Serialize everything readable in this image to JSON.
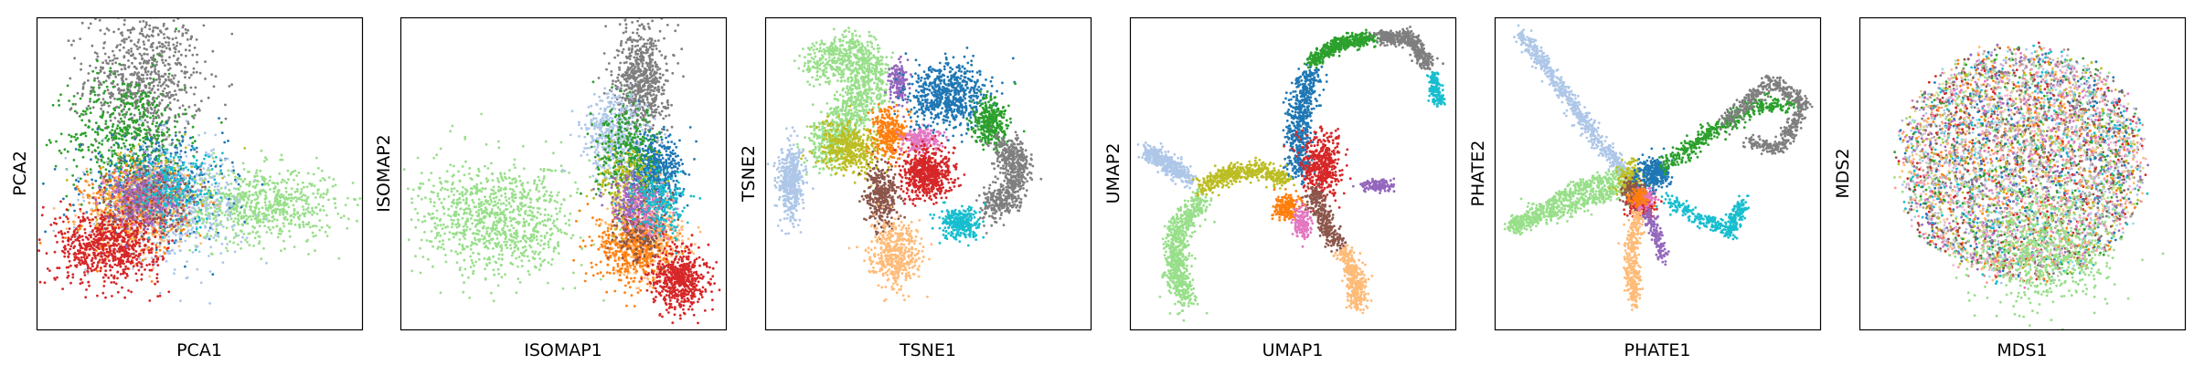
{
  "figure": {
    "panel_count": 6,
    "marker": "small dots",
    "palette": [
      "#1f77b4",
      "#aec7e8",
      "#ff7f0e",
      "#ffbb78",
      "#2ca02c",
      "#98df8a",
      "#d62728",
      "#ff9896",
      "#9467bd",
      "#c5b0d5",
      "#8c564b",
      "#c49c94",
      "#e377c2",
      "#f7b6d2",
      "#7f7f7f",
      "#c7c7c7",
      "#bcbd22",
      "#dbdb8d",
      "#17becf",
      "#9edae5"
    ]
  },
  "chart_data": [
    {
      "type": "scatter",
      "title": "",
      "xlabel": "PCA1",
      "ylabel": "PCA2",
      "axis_ticks": false,
      "grid": false,
      "legend": "none",
      "clusters": [
        {
          "color": "#7f7f7f",
          "cx": 0.33,
          "cy": 0.8,
          "sx": 0.09,
          "sy": 0.11,
          "n": 750
        },
        {
          "color": "#2ca02c",
          "cx": 0.28,
          "cy": 0.62,
          "sx": 0.09,
          "sy": 0.1,
          "n": 550
        },
        {
          "color": "#98df8a",
          "cx": 0.68,
          "cy": 0.4,
          "sx": 0.12,
          "sy": 0.06,
          "n": 750
        },
        {
          "color": "#bcbd22",
          "cx": 0.35,
          "cy": 0.45,
          "sx": 0.08,
          "sy": 0.06,
          "n": 350
        },
        {
          "color": "#1f77b4",
          "cx": 0.36,
          "cy": 0.45,
          "sx": 0.11,
          "sy": 0.08,
          "n": 500
        },
        {
          "color": "#aec7e8",
          "cx": 0.42,
          "cy": 0.4,
          "sx": 0.11,
          "sy": 0.09,
          "n": 550
        },
        {
          "color": "#ff7f0e",
          "cx": 0.3,
          "cy": 0.38,
          "sx": 0.08,
          "sy": 0.07,
          "n": 350
        },
        {
          "color": "#ffbb78",
          "cx": 0.3,
          "cy": 0.37,
          "sx": 0.08,
          "sy": 0.07,
          "n": 350
        },
        {
          "color": "#d62728",
          "cx": 0.22,
          "cy": 0.27,
          "sx": 0.08,
          "sy": 0.06,
          "n": 750
        },
        {
          "color": "#e377c2",
          "cx": 0.35,
          "cy": 0.43,
          "sx": 0.06,
          "sy": 0.05,
          "n": 200
        },
        {
          "color": "#8c564b",
          "cx": 0.34,
          "cy": 0.42,
          "sx": 0.06,
          "sy": 0.05,
          "n": 200
        },
        {
          "color": "#9467bd",
          "cx": 0.32,
          "cy": 0.42,
          "sx": 0.06,
          "sy": 0.05,
          "n": 200
        },
        {
          "color": "#17becf",
          "cx": 0.42,
          "cy": 0.46,
          "sx": 0.07,
          "sy": 0.06,
          "n": 200
        }
      ]
    },
    {
      "type": "scatter",
      "title": "",
      "xlabel": "ISOMAP1",
      "ylabel": "ISOMAP2",
      "axis_ticks": false,
      "grid": false,
      "legend": "none",
      "clusters": [
        {
          "color": "#98df8a",
          "cx": 0.3,
          "cy": 0.35,
          "sx": 0.12,
          "sy": 0.09,
          "n": 950
        },
        {
          "color": "#7f7f7f",
          "cx": 0.74,
          "cy": 0.8,
          "sx": 0.04,
          "sy": 0.09,
          "n": 700
        },
        {
          "color": "#aec7e8",
          "cx": 0.66,
          "cy": 0.62,
          "sx": 0.05,
          "sy": 0.07,
          "n": 450
        },
        {
          "color": "#1f77b4",
          "cx": 0.78,
          "cy": 0.5,
          "sx": 0.04,
          "sy": 0.06,
          "n": 550
        },
        {
          "color": "#2ca02c",
          "cx": 0.7,
          "cy": 0.57,
          "sx": 0.05,
          "sy": 0.07,
          "n": 300
        },
        {
          "color": "#ffbb78",
          "cx": 0.75,
          "cy": 0.3,
          "sx": 0.06,
          "sy": 0.06,
          "n": 500
        },
        {
          "color": "#ff7f0e",
          "cx": 0.72,
          "cy": 0.26,
          "sx": 0.06,
          "sy": 0.06,
          "n": 450
        },
        {
          "color": "#d62728",
          "cx": 0.86,
          "cy": 0.16,
          "sx": 0.04,
          "sy": 0.05,
          "n": 550
        },
        {
          "color": "#bcbd22",
          "cx": 0.7,
          "cy": 0.46,
          "sx": 0.05,
          "sy": 0.06,
          "n": 200
        },
        {
          "color": "#8c564b",
          "cx": 0.74,
          "cy": 0.32,
          "sx": 0.04,
          "sy": 0.05,
          "n": 200
        },
        {
          "color": "#e377c2",
          "cx": 0.75,
          "cy": 0.38,
          "sx": 0.04,
          "sy": 0.04,
          "n": 150
        },
        {
          "color": "#9467bd",
          "cx": 0.71,
          "cy": 0.42,
          "sx": 0.04,
          "sy": 0.04,
          "n": 150
        },
        {
          "color": "#17becf",
          "cx": 0.8,
          "cy": 0.4,
          "sx": 0.04,
          "sy": 0.05,
          "n": 200
        }
      ]
    },
    {
      "type": "scatter",
      "title": "",
      "xlabel": "TSNE1",
      "ylabel": "TSNE2",
      "axis_ticks": false,
      "grid": false,
      "legend": "none",
      "clusters": [
        {
          "color": "#98df8a",
          "path": [
            [
              0.15,
              0.84
            ],
            [
              0.25,
              0.9
            ],
            [
              0.33,
              0.82
            ],
            [
              0.28,
              0.7
            ],
            [
              0.2,
              0.62
            ],
            [
              0.18,
              0.55
            ]
          ],
          "spread": 0.035,
          "n": 1200
        },
        {
          "color": "#aec7e8",
          "cx": 0.08,
          "cy": 0.47,
          "sx": 0.02,
          "sy": 0.06,
          "n": 450
        },
        {
          "color": "#bcbd22",
          "cx": 0.26,
          "cy": 0.58,
          "sx": 0.05,
          "sy": 0.04,
          "n": 450
        },
        {
          "color": "#8c564b",
          "cx": 0.36,
          "cy": 0.43,
          "sx": 0.025,
          "sy": 0.05,
          "n": 350
        },
        {
          "color": "#ffbb78",
          "cx": 0.4,
          "cy": 0.24,
          "sx": 0.04,
          "sy": 0.05,
          "n": 450
        },
        {
          "color": "#ff7f0e",
          "cx": 0.38,
          "cy": 0.63,
          "sx": 0.025,
          "sy": 0.04,
          "n": 300
        },
        {
          "color": "#9467bd",
          "cx": 0.41,
          "cy": 0.79,
          "sx": 0.015,
          "sy": 0.03,
          "n": 150
        },
        {
          "color": "#e377c2",
          "cx": 0.48,
          "cy": 0.61,
          "sx": 0.03,
          "sy": 0.02,
          "n": 200
        },
        {
          "color": "#d62728",
          "cx": 0.5,
          "cy": 0.5,
          "sx": 0.04,
          "sy": 0.04,
          "n": 600
        },
        {
          "color": "#1f77b4",
          "cx": 0.56,
          "cy": 0.75,
          "sx": 0.06,
          "sy": 0.05,
          "n": 700
        },
        {
          "color": "#2ca02c",
          "cx": 0.69,
          "cy": 0.66,
          "sx": 0.025,
          "sy": 0.04,
          "n": 350
        },
        {
          "color": "#7f7f7f",
          "path": [
            [
              0.72,
              0.6
            ],
            [
              0.78,
              0.52
            ],
            [
              0.74,
              0.42
            ],
            [
              0.68,
              0.38
            ]
          ],
          "spread": 0.025,
          "n": 600
        },
        {
          "color": "#17becf",
          "cx": 0.6,
          "cy": 0.34,
          "sx": 0.03,
          "sy": 0.025,
          "n": 300
        }
      ]
    },
    {
      "type": "scatter",
      "title": "",
      "xlabel": "UMAP1",
      "ylabel": "UMAP2",
      "axis_ticks": false,
      "grid": false,
      "legend": "none",
      "clusters": [
        {
          "color": "#1f77b4",
          "path": [
            [
              0.52,
              0.5
            ],
            [
              0.52,
              0.7
            ],
            [
              0.56,
              0.83
            ]
          ],
          "spread": 0.02,
          "n": 600
        },
        {
          "color": "#2ca02c",
          "path": [
            [
              0.56,
              0.86
            ],
            [
              0.65,
              0.92
            ],
            [
              0.74,
              0.93
            ]
          ],
          "spread": 0.012,
          "n": 450
        },
        {
          "color": "#7f7f7f",
          "path": [
            [
              0.76,
              0.94
            ],
            [
              0.86,
              0.93
            ],
            [
              0.92,
              0.85
            ]
          ],
          "spread": 0.012,
          "n": 450
        },
        {
          "color": "#17becf",
          "path": [
            [
              0.93,
              0.82
            ],
            [
              0.95,
              0.72
            ]
          ],
          "spread": 0.01,
          "n": 150
        },
        {
          "color": "#aec7e8",
          "path": [
            [
              0.05,
              0.57
            ],
            [
              0.12,
              0.53
            ],
            [
              0.18,
              0.48
            ]
          ],
          "spread": 0.015,
          "n": 400
        },
        {
          "color": "#98df8a",
          "path": [
            [
              0.22,
              0.42
            ],
            [
              0.15,
              0.32
            ],
            [
              0.14,
              0.2
            ],
            [
              0.17,
              0.08
            ]
          ],
          "spread": 0.02,
          "n": 700
        },
        {
          "color": "#bcbd22",
          "path": [
            [
              0.22,
              0.45
            ],
            [
              0.3,
              0.5
            ],
            [
              0.4,
              0.51
            ],
            [
              0.48,
              0.48
            ]
          ],
          "spread": 0.015,
          "n": 450
        },
        {
          "color": "#d62728",
          "cx": 0.59,
          "cy": 0.53,
          "sx": 0.03,
          "sy": 0.05,
          "n": 450
        },
        {
          "color": "#ff7f0e",
          "cx": 0.48,
          "cy": 0.39,
          "sx": 0.02,
          "sy": 0.02,
          "n": 200
        },
        {
          "color": "#e377c2",
          "cx": 0.53,
          "cy": 0.34,
          "sx": 0.015,
          "sy": 0.025,
          "n": 150
        },
        {
          "color": "#8c564b",
          "path": [
            [
              0.56,
              0.45
            ],
            [
              0.61,
              0.32
            ],
            [
              0.64,
              0.27
            ]
          ],
          "spread": 0.015,
          "n": 300
        },
        {
          "color": "#ffbb78",
          "path": [
            [
              0.66,
              0.25
            ],
            [
              0.7,
              0.14
            ],
            [
              0.7,
              0.08
            ]
          ],
          "spread": 0.015,
          "n": 350
        },
        {
          "color": "#9467bd",
          "cx": 0.76,
          "cy": 0.46,
          "sx": 0.025,
          "sy": 0.01,
          "n": 150
        }
      ]
    },
    {
      "type": "scatter",
      "title": "",
      "xlabel": "PHATE1",
      "ylabel": "PHATE2",
      "axis_ticks": false,
      "grid": false,
      "legend": "none",
      "clusters": [
        {
          "color": "#aec7e8",
          "path": [
            [
              0.08,
              0.95
            ],
            [
              0.2,
              0.78
            ],
            [
              0.32,
              0.6
            ],
            [
              0.42,
              0.48
            ]
          ],
          "spread": 0.012,
          "n": 650
        },
        {
          "color": "#98df8a",
          "path": [
            [
              0.43,
              0.47
            ],
            [
              0.25,
              0.4
            ],
            [
              0.05,
              0.33
            ],
            [
              0.25,
              0.45
            ],
            [
              0.4,
              0.5
            ]
          ],
          "spread": 0.014,
          "n": 800
        },
        {
          "color": "#bcbd22",
          "cx": 0.42,
          "cy": 0.47,
          "sx": 0.02,
          "sy": 0.03,
          "n": 250
        },
        {
          "color": "#d62728",
          "cx": 0.45,
          "cy": 0.4,
          "sx": 0.02,
          "sy": 0.02,
          "n": 200
        },
        {
          "color": "#8c564b",
          "cx": 0.43,
          "cy": 0.44,
          "sx": 0.02,
          "sy": 0.02,
          "n": 150
        },
        {
          "color": "#1f77b4",
          "cx": 0.49,
          "cy": 0.5,
          "sx": 0.025,
          "sy": 0.025,
          "n": 300
        },
        {
          "color": "#2ca02c",
          "path": [
            [
              0.52,
              0.52
            ],
            [
              0.65,
              0.62
            ],
            [
              0.8,
              0.72
            ],
            [
              0.92,
              0.72
            ]
          ],
          "spread": 0.015,
          "n": 450
        },
        {
          "color": "#7f7f7f",
          "path": [
            [
              0.7,
              0.65
            ],
            [
              0.85,
              0.8
            ],
            [
              0.95,
              0.72
            ],
            [
              0.88,
              0.58
            ],
            [
              0.78,
              0.6
            ]
          ],
          "spread": 0.012,
          "n": 550
        },
        {
          "color": "#ffbb78",
          "path": [
            [
              0.44,
              0.38
            ],
            [
              0.42,
              0.25
            ],
            [
              0.43,
              0.08
            ]
          ],
          "spread": 0.012,
          "n": 350
        },
        {
          "color": "#9467bd",
          "path": [
            [
              0.47,
              0.38
            ],
            [
              0.5,
              0.3
            ],
            [
              0.52,
              0.22
            ]
          ],
          "spread": 0.01,
          "n": 150
        },
        {
          "color": "#17becf",
          "path": [
            [
              0.52,
              0.42
            ],
            [
              0.64,
              0.35
            ],
            [
              0.72,
              0.32
            ],
            [
              0.76,
              0.4
            ],
            [
              0.72,
              0.3
            ]
          ],
          "spread": 0.012,
          "n": 350
        },
        {
          "color": "#e377c2",
          "cx": 0.46,
          "cy": 0.42,
          "sx": 0.015,
          "sy": 0.015,
          "n": 100
        },
        {
          "color": "#ff7f0e",
          "cx": 0.44,
          "cy": 0.42,
          "sx": 0.015,
          "sy": 0.015,
          "n": 100
        }
      ]
    },
    {
      "type": "scatter",
      "title": "",
      "xlabel": "MDS1",
      "ylabel": "MDS2",
      "axis_ticks": false,
      "grid": false,
      "legend": "none",
      "disk": {
        "cx": 0.5,
        "cy": 0.53,
        "rx": 0.4,
        "ry": 0.4,
        "n": 5500
      },
      "clusters": [
        {
          "color": "#98df8a",
          "cx": 0.57,
          "cy": 0.25,
          "sx": 0.1,
          "sy": 0.09,
          "n": 600
        }
      ]
    }
  ]
}
